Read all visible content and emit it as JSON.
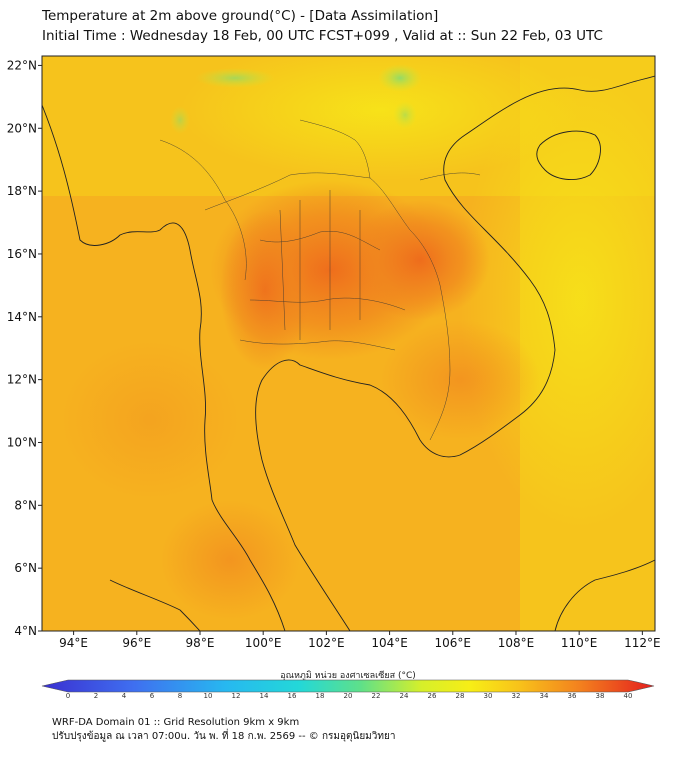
{
  "header": {
    "title": "Temperature at 2m above ground(°C) - [Data Assimilation]",
    "subtitle": "Initial Time : Wednesday 18 Feb, 00 UTC FCST+099 , Valid at :: Sun 22 Feb, 03 UTC"
  },
  "map": {
    "lat_labels": [
      "22°N",
      "20°N",
      "18°N",
      "16°N",
      "14°N",
      "12°N",
      "10°N",
      "8°N",
      "6°N",
      "4°N"
    ],
    "lon_labels": [
      "94°E",
      "96°E",
      "98°E",
      "100°E",
      "102°E",
      "104°E",
      "106°E",
      "108°E",
      "110°E",
      "112°E"
    ],
    "lat_range": [
      4,
      22.3
    ],
    "lon_range": [
      93,
      112.4
    ]
  },
  "colorbar": {
    "label": "อุณหภูมิ หน่วย องศาเซลเซียส (°C)",
    "ticks": [
      "0",
      "2",
      "4",
      "6",
      "8",
      "10",
      "12",
      "14",
      "16",
      "18",
      "20",
      "22",
      "24",
      "26",
      "28",
      "30",
      "32",
      "34",
      "36",
      "38",
      "40"
    ],
    "range": [
      0,
      40
    ]
  },
  "footer": {
    "line1": "WRF-DA Domain 01 :: Grid Resolution 9km x 9km",
    "line2": "ปรับปรุงข้อมูล ณ เวลา 07:00u. วัน พ. ที่ 18 ก.พ. 2569 -- © กรมอุตุนิยมวิทยา"
  },
  "colors": {
    "field_base": "#f7b51e",
    "field_hot": "#f07a1e",
    "field_cool": "#f5e51a",
    "field_green": "#a7e05a",
    "coastline": "#222222"
  }
}
